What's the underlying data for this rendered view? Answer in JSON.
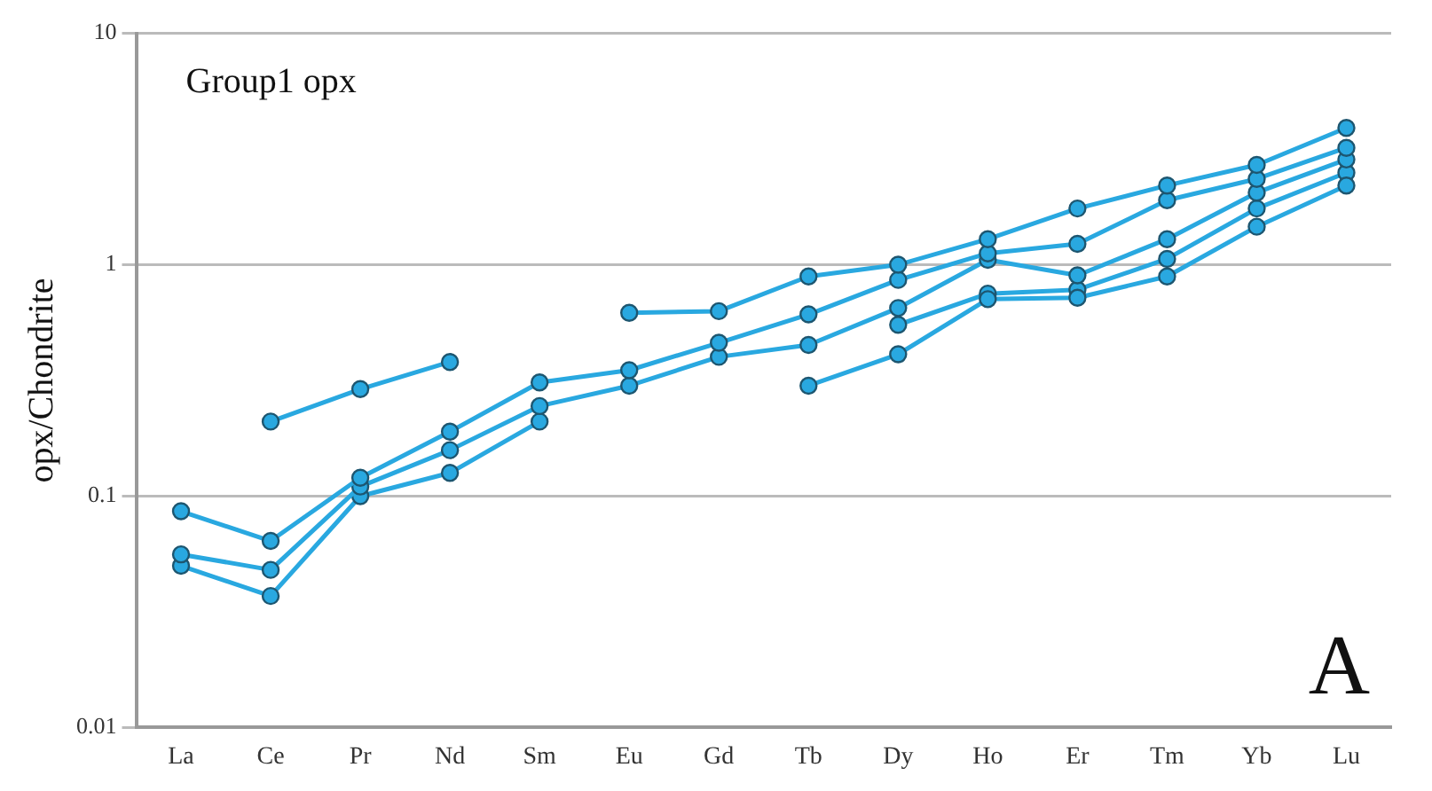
{
  "chart_data": {
    "type": "line",
    "ylabel": "opx/Chondrite",
    "annotations": [
      "Group1 opx",
      "A"
    ],
    "categories": [
      "La",
      "Ce",
      "Pr",
      "Nd",
      "Sm",
      "Eu",
      "Gd",
      "Tb",
      "Dy",
      "Ho",
      "Er",
      "Tm",
      "Yb",
      "Lu"
    ],
    "series": [
      {
        "color": "#29a8e0",
        "values": [
          null,
          0.21,
          0.29,
          0.38,
          null,
          0.62,
          0.63,
          0.89,
          1.0,
          1.29,
          1.75,
          2.2,
          2.7,
          3.9
        ]
      },
      {
        "color": "#29a8e0",
        "values": [
          0.086,
          0.064,
          0.12,
          0.19,
          0.31,
          0.35,
          0.46,
          0.61,
          0.86,
          1.12,
          1.23,
          1.9,
          2.35,
          3.2
        ]
      },
      {
        "color": "#29a8e0",
        "values": [
          0.056,
          0.048,
          0.11,
          0.158,
          0.245,
          0.3,
          0.4,
          0.45,
          0.65,
          1.05,
          0.9,
          1.29,
          2.05,
          2.85
        ]
      },
      {
        "color": "#29a8e0",
        "values": [
          0.05,
          0.037,
          0.1,
          0.126,
          0.21,
          null,
          null,
          null,
          null,
          null,
          null,
          null,
          null,
          null
        ]
      },
      {
        "color": "#29a8e0",
        "values": [
          null,
          null,
          null,
          null,
          null,
          null,
          null,
          0.3,
          0.41,
          0.71,
          0.72,
          0.89,
          1.46,
          2.2
        ]
      },
      {
        "color": "#29a8e0",
        "values": [
          null,
          null,
          null,
          null,
          null,
          null,
          null,
          null,
          0.55,
          0.75,
          0.78,
          1.06,
          1.75,
          2.5
        ]
      }
    ],
    "log": "y",
    "ylim": [
      0.01,
      10
    ],
    "yticks": [
      0.01,
      0.1,
      1,
      10
    ],
    "grid": "y",
    "marker": "circle",
    "line_style": "solid",
    "legend": false
  }
}
